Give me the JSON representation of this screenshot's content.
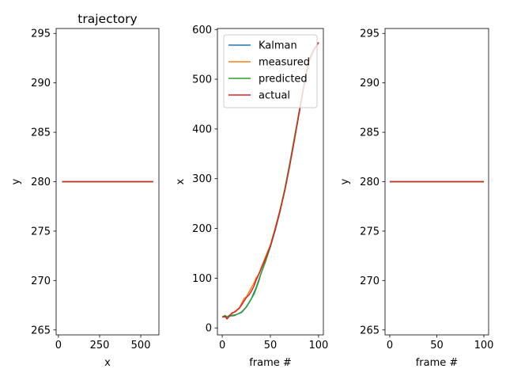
{
  "chart_data": [
    {
      "type": "line",
      "title": "trajectory",
      "xlabel": "x",
      "ylabel": "y",
      "xlim": [
        -14,
        610
      ],
      "ylim": [
        264.5,
        295.5
      ],
      "xticks": [
        0,
        250,
        500
      ],
      "yticks": [
        265,
        270,
        275,
        280,
        285,
        290,
        295
      ],
      "series": [
        {
          "color": "#1f77b4",
          "x": [
            22,
            575
          ],
          "y": [
            280,
            280
          ]
        },
        {
          "color": "#ff7f0e",
          "x": [
            22,
            575
          ],
          "y": [
            280,
            280
          ]
        },
        {
          "color": "#2ca02c",
          "x": [
            22,
            575
          ],
          "y": [
            280,
            280
          ]
        },
        {
          "color": "#d62728",
          "x": [
            22,
            575
          ],
          "y": [
            280,
            280
          ]
        }
      ]
    },
    {
      "type": "line",
      "title": "",
      "xlabel": "frame #",
      "ylabel": "x",
      "xlim": [
        -5,
        105
      ],
      "ylim": [
        -14,
        602
      ],
      "xticks": [
        0,
        50,
        100
      ],
      "yticks": [
        0,
        100,
        200,
        300,
        400,
        500,
        600
      ],
      "legend": "upper-left",
      "series": [
        {
          "name": "Kalman",
          "color": "#1f77b4",
          "x": [
            0,
            5,
            10,
            15,
            20,
            25,
            30,
            35,
            40,
            45,
            50,
            55,
            60,
            65,
            70,
            75,
            80,
            85,
            90,
            95,
            100
          ],
          "y": [
            22,
            22,
            25,
            27,
            31,
            42,
            58,
            80,
            108,
            134,
            163,
            196,
            234,
            278,
            327,
            380,
            433,
            490,
            540,
            560,
            574
          ]
        },
        {
          "name": "measured",
          "color": "#ff7f0e",
          "x": [
            0,
            3,
            5,
            8,
            10,
            13,
            15,
            18,
            20,
            23,
            25,
            28,
            30,
            33,
            35,
            38,
            40,
            45,
            50,
            55,
            60,
            65,
            70,
            75,
            80,
            85,
            90,
            95,
            100
          ],
          "y": [
            22,
            25,
            20,
            26,
            28,
            33,
            36,
            41,
            49,
            60,
            62,
            73,
            80,
            90,
            100,
            108,
            119,
            143,
            167,
            201,
            238,
            278,
            327,
            382,
            437,
            490,
            537,
            559,
            574
          ]
        },
        {
          "name": "predicted",
          "color": "#2ca02c",
          "x": [
            0,
            3,
            5,
            8,
            10,
            13,
            15,
            18,
            20,
            23,
            25,
            28,
            30,
            33,
            35,
            38,
            40,
            45,
            50,
            55,
            60,
            65,
            70,
            75,
            80,
            85,
            90,
            95,
            100
          ],
          "y": [
            22,
            25,
            22,
            26,
            24,
            25,
            27,
            30,
            32,
            38,
            42,
            51,
            58,
            68,
            78,
            94,
            108,
            134,
            164,
            199,
            236,
            280,
            330,
            383,
            436,
            491,
            540,
            559,
            574
          ]
        },
        {
          "name": "actual",
          "color": "#d62728",
          "x": [
            0,
            3,
            5,
            8,
            10,
            13,
            15,
            18,
            20,
            23,
            25,
            28,
            30,
            33,
            35,
            38,
            40,
            45,
            50,
            55,
            60,
            65,
            70,
            75,
            80,
            85,
            90,
            95,
            100
          ],
          "y": [
            22,
            23,
            18,
            25,
            30,
            32,
            35,
            40,
            46,
            55,
            61,
            67,
            73,
            84,
            95,
            108,
            117,
            140,
            165,
            198,
            235,
            276,
            325,
            378,
            434,
            488,
            535,
            558,
            574
          ]
        }
      ]
    },
    {
      "type": "line",
      "title": "",
      "xlabel": "frame #",
      "ylabel": "y",
      "xlim": [
        -5,
        105
      ],
      "ylim": [
        264.5,
        295.5
      ],
      "xticks": [
        0,
        50,
        100
      ],
      "yticks": [
        265,
        270,
        275,
        280,
        285,
        290,
        295
      ],
      "series": [
        {
          "color": "#1f77b4",
          "x": [
            0,
            100
          ],
          "y": [
            280,
            280
          ]
        },
        {
          "color": "#ff7f0e",
          "x": [
            0,
            100
          ],
          "y": [
            280,
            280
          ]
        },
        {
          "color": "#2ca02c",
          "x": [
            0,
            100
          ],
          "y": [
            280,
            280
          ]
        },
        {
          "color": "#d62728",
          "x": [
            0,
            100
          ],
          "y": [
            280,
            280
          ]
        }
      ]
    }
  ]
}
